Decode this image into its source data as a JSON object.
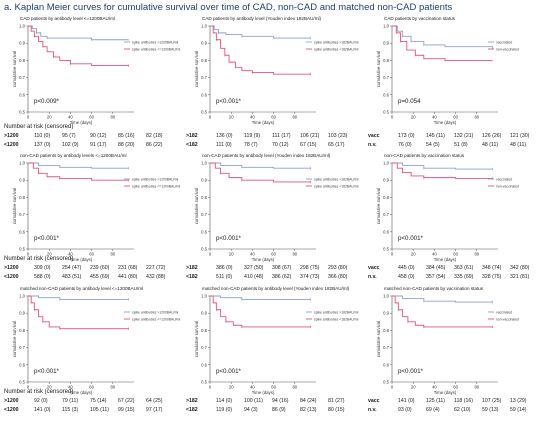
{
  "figure_title": "a. Kaplan Meier curves for cumulative survival over time of CAD, non-CAD and matched non-CAD patients",
  "risk_header": "Number at risk (censored)",
  "chart_data": [
    {
      "type": "line",
      "title": "CAD patients by antibody level <=1200BAU/ml",
      "ylabel": "cumulative survival",
      "xlabel": "Time (days)",
      "ylim": [
        0.5,
        1.0
      ],
      "xlim": [
        0,
        100
      ],
      "yticks": [
        "0.5",
        "0.6",
        "0.7",
        "0.8",
        "0.9",
        "1.0"
      ],
      "xticks": [
        "0",
        "20",
        "40",
        "60",
        "80"
      ],
      "series": [
        {
          "name": "spike antibodies >1200BAU/ml",
          "color": "#8aa2cc",
          "points": [
            [
              0,
              1.0
            ],
            [
              4,
              0.985
            ],
            [
              8,
              0.96
            ],
            [
              12,
              0.94
            ],
            [
              18,
              0.93
            ],
            [
              30,
              0.93
            ],
            [
              60,
              0.92
            ],
            [
              95,
              0.92
            ]
          ]
        },
        {
          "name": "spike antibodies <=1200BAU/ml",
          "color": "#e0557a",
          "points": [
            [
              0,
              1.0
            ],
            [
              3,
              0.97
            ],
            [
              6,
              0.94
            ],
            [
              10,
              0.91
            ],
            [
              14,
              0.88
            ],
            [
              18,
              0.85
            ],
            [
              24,
              0.82
            ],
            [
              30,
              0.8
            ],
            [
              40,
              0.78
            ],
            [
              60,
              0.77
            ],
            [
              95,
              0.77
            ]
          ]
        }
      ],
      "pvalue": "p<0.009*"
    },
    {
      "type": "line",
      "title": "CAD patients by antibody level (Youden index 182BAU/ml)",
      "ylabel": "cumulative survival",
      "xlabel": "Time (days)",
      "ylim": [
        0.5,
        1.0
      ],
      "xlim": [
        0,
        100
      ],
      "yticks": [
        "0.5",
        "0.6",
        "0.7",
        "0.8",
        "0.9",
        "1.0"
      ],
      "xticks": [
        "0",
        "20",
        "40",
        "60",
        "80"
      ],
      "series": [
        {
          "name": "spike antibodies >182BAU/ml",
          "color": "#8aa2cc",
          "points": [
            [
              0,
              1.0
            ],
            [
              4,
              0.98
            ],
            [
              8,
              0.96
            ],
            [
              15,
              0.95
            ],
            [
              30,
              0.94
            ],
            [
              60,
              0.93
            ],
            [
              95,
              0.93
            ]
          ]
        },
        {
          "name": "spike antibodies <182BAU/ml",
          "color": "#e0557a",
          "points": [
            [
              0,
              1.0
            ],
            [
              3,
              0.96
            ],
            [
              6,
              0.92
            ],
            [
              10,
              0.87
            ],
            [
              14,
              0.83
            ],
            [
              18,
              0.79
            ],
            [
              24,
              0.76
            ],
            [
              30,
              0.74
            ],
            [
              40,
              0.73
            ],
            [
              60,
              0.72
            ],
            [
              95,
              0.72
            ]
          ]
        }
      ],
      "pvalue": "p<0.001*"
    },
    {
      "type": "line",
      "title": "CAD patients by vaccination status",
      "ylabel": "cumulative survival",
      "xlabel": "Time (days)",
      "ylim": [
        0.5,
        1.0
      ],
      "xlim": [
        0,
        100
      ],
      "yticks": [
        "0.5",
        "0.6",
        "0.7",
        "0.8",
        "0.9",
        "1.0"
      ],
      "xticks": [
        "0",
        "20",
        "40",
        "60",
        "80"
      ],
      "series": [
        {
          "name": "vaccinated",
          "color": "#8aa2cc",
          "points": [
            [
              0,
              1.0
            ],
            [
              5,
              0.97
            ],
            [
              10,
              0.94
            ],
            [
              18,
              0.91
            ],
            [
              30,
              0.89
            ],
            [
              50,
              0.88
            ],
            [
              95,
              0.87
            ]
          ]
        },
        {
          "name": "non-vaccinated",
          "color": "#e0557a",
          "points": [
            [
              0,
              1.0
            ],
            [
              4,
              0.96
            ],
            [
              8,
              0.91
            ],
            [
              14,
              0.86
            ],
            [
              22,
              0.83
            ],
            [
              30,
              0.81
            ],
            [
              50,
              0.8
            ],
            [
              95,
              0.8
            ]
          ]
        }
      ],
      "pvalue": "p=0.054"
    },
    {
      "type": "line",
      "title": "non-CAD patients by antibody levels <=1200BAU/ml",
      "ylabel": "cumulative survival",
      "xlabel": "Time (days)",
      "ylim": [
        0.5,
        1.0
      ],
      "xlim": [
        0,
        100
      ],
      "yticks": [
        "0.5",
        "0.6",
        "0.7",
        "0.8",
        "0.9",
        "1.0"
      ],
      "xticks": [
        "0",
        "20",
        "40",
        "60",
        "80"
      ],
      "series": [
        {
          "name": "spike antibodies >1200BAU/ml",
          "color": "#8aa2cc",
          "points": [
            [
              0,
              1.0
            ],
            [
              10,
              0.985
            ],
            [
              30,
              0.975
            ],
            [
              60,
              0.97
            ],
            [
              95,
              0.97
            ]
          ]
        },
        {
          "name": "spike antibodies <=1200BAU/ml",
          "color": "#e0557a",
          "points": [
            [
              0,
              1.0
            ],
            [
              5,
              0.97
            ],
            [
              10,
              0.94
            ],
            [
              18,
              0.92
            ],
            [
              30,
              0.91
            ],
            [
              60,
              0.9
            ],
            [
              95,
              0.9
            ]
          ]
        }
      ],
      "pvalue": "p<0.001*"
    },
    {
      "type": "line",
      "title": "non-CAD patients by antibody level (Youden index 182BAU/ml)",
      "ylabel": "cumulative survival",
      "xlabel": "Time (days)",
      "ylim": [
        0.5,
        1.0
      ],
      "xlim": [
        0,
        100
      ],
      "yticks": [
        "0.5",
        "0.6",
        "0.7",
        "0.8",
        "0.9",
        "1.0"
      ],
      "xticks": [
        "0",
        "20",
        "40",
        "60",
        "80"
      ],
      "series": [
        {
          "name": "spike antibodies >182BAU/ml",
          "color": "#8aa2cc",
          "points": [
            [
              0,
              1.0
            ],
            [
              10,
              0.985
            ],
            [
              30,
              0.975
            ],
            [
              60,
              0.97
            ],
            [
              95,
              0.97
            ]
          ]
        },
        {
          "name": "spike antibodies <182BAU/ml",
          "color": "#e0557a",
          "points": [
            [
              0,
              1.0
            ],
            [
              5,
              0.97
            ],
            [
              10,
              0.94
            ],
            [
              18,
              0.915
            ],
            [
              30,
              0.9
            ],
            [
              60,
              0.89
            ],
            [
              95,
              0.89
            ]
          ]
        }
      ],
      "pvalue": "p<0.001*"
    },
    {
      "type": "line",
      "title": "non-CAD patients by vaccination status",
      "ylabel": "cumulative survival",
      "xlabel": "Time (days)",
      "ylim": [
        0.5,
        1.0
      ],
      "xlim": [
        0,
        100
      ],
      "yticks": [
        "0.5",
        "0.6",
        "0.7",
        "0.8",
        "0.9",
        "1.0"
      ],
      "xticks": [
        "0",
        "20",
        "40",
        "60",
        "80"
      ],
      "series": [
        {
          "name": "vaccinated",
          "color": "#8aa2cc",
          "points": [
            [
              0,
              1.0
            ],
            [
              10,
              0.985
            ],
            [
              30,
              0.97
            ],
            [
              60,
              0.965
            ],
            [
              95,
              0.965
            ]
          ]
        },
        {
          "name": "non-vaccinated",
          "color": "#e0557a",
          "points": [
            [
              0,
              1.0
            ],
            [
              5,
              0.97
            ],
            [
              10,
              0.945
            ],
            [
              18,
              0.925
            ],
            [
              30,
              0.915
            ],
            [
              60,
              0.91
            ],
            [
              95,
              0.91
            ]
          ]
        }
      ],
      "pvalue": "p<0.001*"
    },
    {
      "type": "line",
      "title": "matched non-CAD patients by antibody level <=1200BAU/ml",
      "ylabel": "cumulative survival",
      "xlabel": "Time (days)",
      "ylim": [
        0.5,
        1.0
      ],
      "xlim": [
        0,
        100
      ],
      "yticks": [
        "0.5",
        "0.6",
        "0.7",
        "0.8",
        "0.9",
        "1.0"
      ],
      "xticks": [
        "0",
        "20",
        "40",
        "60",
        "80"
      ],
      "series": [
        {
          "name": "spike antibodies >1200BAU/ml",
          "color": "#8aa2cc",
          "points": [
            [
              0,
              1.0
            ],
            [
              10,
              0.99
            ],
            [
              30,
              0.98
            ],
            [
              60,
              0.98
            ],
            [
              95,
              0.98
            ]
          ]
        },
        {
          "name": "spike antibodies <=1200BAU/ml",
          "color": "#e0557a",
          "points": [
            [
              0,
              1.0
            ],
            [
              3,
              0.96
            ],
            [
              6,
              0.92
            ],
            [
              10,
              0.88
            ],
            [
              14,
              0.85
            ],
            [
              20,
              0.82
            ],
            [
              30,
              0.81
            ],
            [
              60,
              0.81
            ],
            [
              95,
              0.81
            ]
          ]
        }
      ],
      "pvalue": "p<0.001*"
    },
    {
      "type": "line",
      "title": "matched non-CAD patients by antibody level (Youden index 182BAU/ml)",
      "ylabel": "cumulative survival",
      "xlabel": "Time (days)",
      "ylim": [
        0.5,
        1.0
      ],
      "xlim": [
        0,
        100
      ],
      "yticks": [
        "0.5",
        "0.6",
        "0.7",
        "0.8",
        "0.9",
        "1.0"
      ],
      "xticks": [
        "0",
        "20",
        "40",
        "60",
        "80"
      ],
      "series": [
        {
          "name": "spike antibodies >182BAU/ml",
          "color": "#8aa2cc",
          "points": [
            [
              0,
              1.0
            ],
            [
              10,
              0.99
            ],
            [
              30,
              0.98
            ],
            [
              60,
              0.98
            ],
            [
              95,
              0.98
            ]
          ]
        },
        {
          "name": "spike antibodies <182BAU/ml",
          "color": "#e0557a",
          "points": [
            [
              0,
              1.0
            ],
            [
              3,
              0.96
            ],
            [
              6,
              0.92
            ],
            [
              10,
              0.88
            ],
            [
              15,
              0.85
            ],
            [
              22,
              0.83
            ],
            [
              30,
              0.82
            ],
            [
              60,
              0.82
            ],
            [
              95,
              0.82
            ]
          ]
        }
      ],
      "pvalue": "p<0.001*"
    },
    {
      "type": "line",
      "title": "matched non-CAD patients by vaccination status",
      "ylabel": "cumulative survival",
      "xlabel": "Time (days)",
      "ylim": [
        0.5,
        1.0
      ],
      "xlim": [
        0,
        100
      ],
      "yticks": [
        "0.5",
        "0.6",
        "0.7",
        "0.8",
        "0.9",
        "1.0"
      ],
      "xticks": [
        "0",
        "20",
        "40",
        "60",
        "80"
      ],
      "series": [
        {
          "name": "vaccinated",
          "color": "#8aa2cc",
          "points": [
            [
              0,
              1.0
            ],
            [
              10,
              0.985
            ],
            [
              30,
              0.97
            ],
            [
              60,
              0.965
            ],
            [
              95,
              0.965
            ]
          ]
        },
        {
          "name": "non-vaccinated",
          "color": "#e0557a",
          "points": [
            [
              0,
              1.0
            ],
            [
              3,
              0.96
            ],
            [
              6,
              0.92
            ],
            [
              10,
              0.88
            ],
            [
              15,
              0.85
            ],
            [
              22,
              0.83
            ],
            [
              30,
              0.82
            ],
            [
              60,
              0.82
            ],
            [
              95,
              0.82
            ]
          ]
        }
      ],
      "pvalue": "p<0.001*"
    }
  ],
  "risk_tables": [
    [
      {
        "label": ">1200",
        "cells": [
          "110 (0)",
          "95 (7)",
          "90 (12)",
          "85 (16)",
          "82 (18)"
        ]
      },
      {
        "label": "<1200",
        "cells": [
          "137 (0)",
          "102 (9)",
          "91 (17)",
          "88 (20)",
          "86 (22)"
        ]
      }
    ],
    [
      {
        "label": ">182",
        "cells": [
          "136 (0)",
          "119 (9)",
          "111 (17)",
          "106 (21)",
          "103 (23)"
        ]
      },
      {
        "label": "<182",
        "cells": [
          "111 (0)",
          "78 (7)",
          "70 (12)",
          "67 (15)",
          "65 (17)"
        ]
      }
    ],
    [
      {
        "label": "vacc",
        "cells": [
          "173 (0)",
          "145 (11)",
          "132 (21)",
          "126 (26)",
          "121 (30)"
        ]
      },
      {
        "label": "n.v.",
        "cells": [
          "76 (0)",
          "54 (5)",
          "51 (8)",
          "48 (11)",
          "48 (11)"
        ]
      }
    ],
    [
      {
        "label": ">1200",
        "cells": [
          "309 (0)",
          "254 (47)",
          "239 (60)",
          "231 (68)",
          "227 (72)"
        ]
      },
      {
        "label": "<1200",
        "cells": [
          "588 (0)",
          "483 (51)",
          "455 (69)",
          "441 (80)",
          "432 (88)"
        ]
      }
    ],
    [
      {
        "label": ">182",
        "cells": [
          "386 (0)",
          "327 (50)",
          "308 (67)",
          "298 (75)",
          "293 (80)"
        ]
      },
      {
        "label": "<182",
        "cells": [
          "511 (0)",
          "410 (48)",
          "386 (62)",
          "374 (73)",
          "366 (80)"
        ]
      }
    ],
    [
      {
        "label": "vacc",
        "cells": [
          "445 (0)",
          "384 (45)",
          "363 (61)",
          "348 (74)",
          "342 (80)"
        ]
      },
      {
        "label": "n.v.",
        "cells": [
          "458 (0)",
          "357 (54)",
          "335 (69)",
          "328 (75)",
          "321 (81)"
        ]
      }
    ],
    [
      {
        "label": ">1200",
        "cells": [
          "92 (0)",
          "79 (11)",
          "75 (14)",
          "67 (22)",
          "64 (25)"
        ]
      },
      {
        "label": "<1200",
        "cells": [
          "141 (0)",
          "115 (3)",
          "105 (11)",
          "99 (15)",
          "97 (17)"
        ]
      }
    ],
    [
      {
        "label": ">182",
        "cells": [
          "114 (0)",
          "100 (11)",
          "94 (16)",
          "84 (24)",
          "81 (27)"
        ]
      },
      {
        "label": "<182",
        "cells": [
          "119 (0)",
          "94 (3)",
          "86 (9)",
          "82 (13)",
          "80 (15)"
        ]
      }
    ],
    [
      {
        "label": "vacc",
        "cells": [
          "141 (0)",
          "125 (11)",
          "118 (16)",
          "107 (25)",
          "13 (29)"
        ]
      },
      {
        "label": "n.v.",
        "cells": [
          "93 (0)",
          "69 (4)",
          "62 (10)",
          "59 (13)",
          "59 (14)"
        ]
      }
    ]
  ]
}
